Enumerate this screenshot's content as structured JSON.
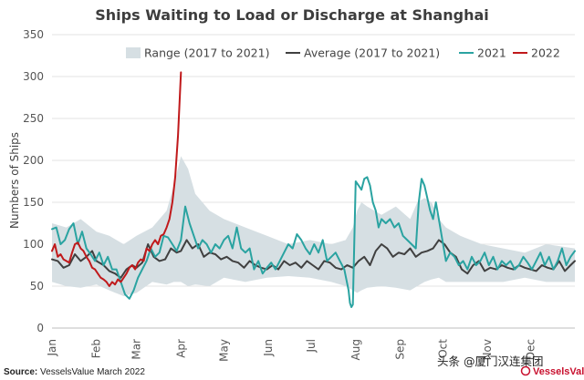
{
  "chart_data": {
    "type": "line",
    "title": "Ships Waiting to Load or Discharge at Shanghai",
    "xlabel": "",
    "ylabel": "Numbers of Ships",
    "ylim": [
      0,
      350
    ],
    "yticks": [
      0,
      50,
      100,
      150,
      200,
      250,
      300,
      350
    ],
    "xlim": [
      0,
      365
    ],
    "months": [
      {
        "label": "Jan",
        "day": 0
      },
      {
        "label": "Feb",
        "day": 31
      },
      {
        "label": "Mar",
        "day": 59
      },
      {
        "label": "Apr",
        "day": 90
      },
      {
        "label": "May",
        "day": 120
      },
      {
        "label": "Jun",
        "day": 151
      },
      {
        "label": "Jul",
        "day": 181
      },
      {
        "label": "Aug",
        "day": 212
      },
      {
        "label": "Sep",
        "day": 243
      },
      {
        "label": "Oct",
        "day": 273
      },
      {
        "label": "Nov",
        "day": 304
      },
      {
        "label": "Dec",
        "day": 334
      }
    ],
    "grid": true,
    "legend_position": "top",
    "range": {
      "name": "Range (2017 to 2021)",
      "color": "#d6dfe3",
      "x": [
        0,
        10,
        20,
        31,
        40,
        50,
        59,
        70,
        80,
        85,
        90,
        95,
        100,
        110,
        120,
        135,
        150,
        165,
        180,
        195,
        205,
        210,
        213,
        216,
        220,
        230,
        240,
        250,
        255,
        260,
        265,
        270,
        275,
        285,
        300,
        315,
        330,
        345,
        365
      ],
      "low": [
        55,
        50,
        48,
        52,
        45,
        38,
        42,
        55,
        52,
        55,
        55,
        50,
        52,
        50,
        60,
        55,
        60,
        62,
        60,
        55,
        50,
        45,
        42,
        45,
        48,
        50,
        48,
        45,
        50,
        55,
        58,
        60,
        55,
        55,
        55,
        55,
        60,
        55,
        55
      ],
      "high": [
        125,
        120,
        130,
        115,
        110,
        100,
        110,
        120,
        140,
        170,
        205,
        190,
        160,
        140,
        130,
        120,
        110,
        100,
        105,
        100,
        105,
        120,
        140,
        150,
        145,
        135,
        145,
        130,
        150,
        155,
        150,
        130,
        120,
        110,
        100,
        95,
        90,
        100,
        95
      ]
    },
    "series": [
      {
        "name": "Average (2017 to 2021)",
        "color": "#404040",
        "x": [
          0,
          4,
          8,
          12,
          16,
          20,
          24,
          28,
          31,
          36,
          40,
          44,
          48,
          52,
          56,
          59,
          63,
          67,
          71,
          75,
          79,
          83,
          87,
          90,
          94,
          98,
          102,
          106,
          110,
          114,
          118,
          122,
          126,
          130,
          134,
          138,
          142,
          146,
          150,
          154,
          158,
          162,
          166,
          170,
          174,
          178,
          182,
          186,
          190,
          194,
          198,
          202,
          206,
          210,
          214,
          218,
          222,
          226,
          230,
          234,
          238,
          242,
          246,
          250,
          254,
          258,
          262,
          266,
          270,
          274,
          278,
          282,
          286,
          290,
          294,
          298,
          302,
          306,
          310,
          314,
          318,
          322,
          326,
          330,
          334,
          338,
          342,
          346,
          350,
          354,
          358,
          362,
          365
        ],
        "y": [
          82,
          80,
          72,
          75,
          88,
          80,
          85,
          92,
          80,
          75,
          68,
          65,
          60,
          70,
          75,
          72,
          78,
          100,
          85,
          80,
          82,
          95,
          90,
          92,
          105,
          95,
          100,
          85,
          90,
          88,
          82,
          85,
          80,
          78,
          72,
          80,
          75,
          72,
          70,
          75,
          70,
          80,
          75,
          78,
          72,
          80,
          75,
          70,
          80,
          78,
          72,
          70,
          75,
          72,
          80,
          85,
          75,
          92,
          100,
          95,
          85,
          90,
          88,
          95,
          85,
          90,
          92,
          95,
          105,
          100,
          90,
          85,
          70,
          65,
          75,
          80,
          68,
          72,
          70,
          75,
          72,
          70,
          75,
          72,
          70,
          68,
          75,
          72,
          70,
          80,
          68,
          75,
          80
        ]
      },
      {
        "name": "2021",
        "color": "#2aa3a1",
        "x": [
          0,
          3,
          6,
          9,
          12,
          15,
          18,
          21,
          24,
          27,
          30,
          33,
          36,
          39,
          42,
          45,
          48,
          51,
          54,
          57,
          60,
          63,
          66,
          69,
          72,
          75,
          78,
          81,
          84,
          87,
          90,
          93,
          96,
          99,
          102,
          105,
          108,
          111,
          114,
          117,
          120,
          123,
          126,
          129,
          132,
          135,
          138,
          141,
          144,
          147,
          150,
          153,
          156,
          159,
          162,
          165,
          168,
          171,
          174,
          177,
          180,
          183,
          186,
          189,
          192,
          195,
          198,
          201,
          204,
          207,
          208,
          209,
          210,
          212,
          214,
          216,
          218,
          220,
          222,
          224,
          226,
          228,
          230,
          233,
          236,
          239,
          242,
          245,
          248,
          251,
          254,
          256,
          258,
          260,
          262,
          264,
          266,
          268,
          270,
          272,
          275,
          278,
          281,
          284,
          287,
          290,
          293,
          296,
          299,
          302,
          305,
          308,
          311,
          314,
          317,
          320,
          323,
          326,
          329,
          332,
          335,
          338,
          341,
          344,
          347,
          350,
          353,
          356,
          359,
          362,
          365
        ],
        "y": [
          118,
          120,
          100,
          105,
          118,
          125,
          100,
          115,
          95,
          88,
          80,
          90,
          75,
          85,
          70,
          70,
          55,
          40,
          35,
          45,
          60,
          70,
          80,
          95,
          85,
          90,
          110,
          108,
          100,
          92,
          105,
          145,
          125,
          110,
          95,
          105,
          100,
          90,
          100,
          95,
          105,
          110,
          95,
          120,
          95,
          90,
          95,
          70,
          80,
          65,
          72,
          78,
          70,
          80,
          90,
          100,
          95,
          112,
          105,
          95,
          88,
          100,
          90,
          105,
          80,
          85,
          90,
          80,
          70,
          45,
          30,
          25,
          28,
          175,
          170,
          165,
          178,
          180,
          170,
          150,
          140,
          120,
          130,
          125,
          130,
          120,
          125,
          110,
          105,
          100,
          95,
          150,
          178,
          170,
          155,
          140,
          130,
          150,
          130,
          110,
          80,
          90,
          85,
          75,
          80,
          70,
          85,
          75,
          80,
          90,
          75,
          85,
          70,
          80,
          75,
          80,
          70,
          75,
          85,
          78,
          70,
          80,
          90,
          75,
          85,
          70,
          80,
          95,
          75,
          85,
          92
        ]
      },
      {
        "name": "2022",
        "color": "#c0191b",
        "x": [
          0,
          2,
          4,
          6,
          8,
          10,
          12,
          14,
          16,
          18,
          20,
          22,
          24,
          26,
          28,
          30,
          32,
          34,
          36,
          38,
          40,
          42,
          44,
          46,
          48,
          50,
          52,
          54,
          56,
          58,
          60,
          62,
          64,
          66,
          68,
          70,
          72,
          74,
          76,
          78,
          80,
          82,
          84,
          86,
          88,
          90
        ],
        "y": [
          92,
          100,
          85,
          88,
          82,
          80,
          78,
          90,
          100,
          102,
          95,
          92,
          85,
          80,
          72,
          70,
          65,
          60,
          58,
          55,
          50,
          55,
          52,
          58,
          55,
          60,
          65,
          72,
          75,
          70,
          78,
          82,
          80,
          95,
          92,
          100,
          105,
          100,
          110,
          112,
          120,
          130,
          150,
          180,
          230,
          305
        ]
      }
    ],
    "legend": [
      {
        "name": "Range (2017 to 2021)",
        "kind": "area",
        "color": "#d6dfe3"
      },
      {
        "name": "Average (2017 to 2021)",
        "kind": "line",
        "color": "#404040"
      },
      {
        "name": "2021",
        "kind": "line",
        "color": "#2aa3a1"
      },
      {
        "name": "2022",
        "kind": "line",
        "color": "#c0191b"
      }
    ]
  },
  "footer": {
    "source_label": "Source:",
    "source_text": " VesselsValue March 2022",
    "watermark": "头条 @厦门汉连集团",
    "brand": "VesselsValue"
  }
}
